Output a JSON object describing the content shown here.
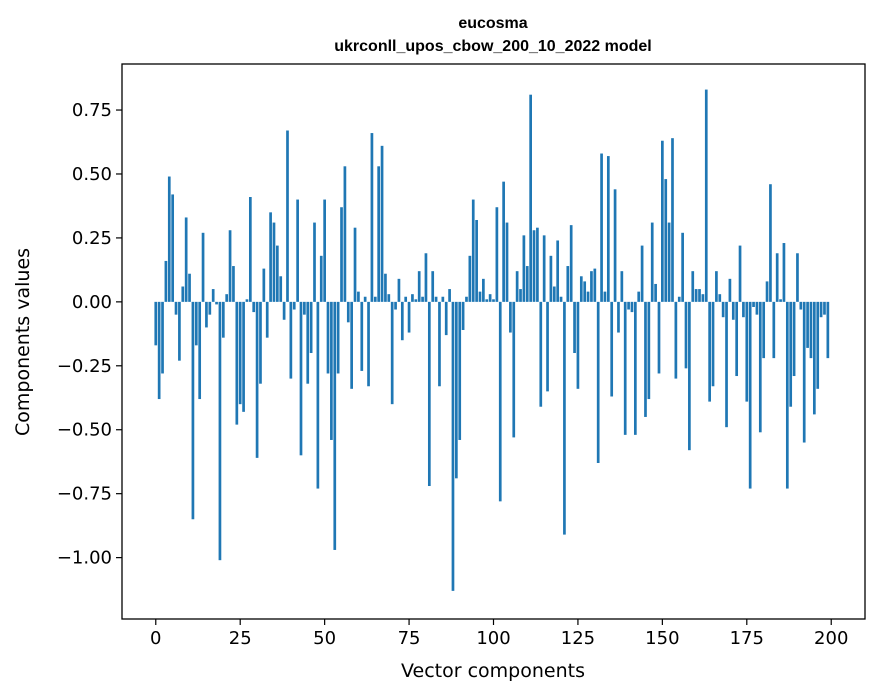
{
  "chart_data": {
    "type": "bar",
    "title": "eucosma",
    "subtitle": "ukrconll_upos_cbow_200_10_2022 model",
    "xlabel": "Vector components",
    "ylabel": "Components values",
    "xlim": [
      -10,
      210
    ],
    "ylim": [
      -1.24,
      0.93
    ],
    "xticks": [
      0,
      25,
      50,
      75,
      100,
      125,
      150,
      175,
      200
    ],
    "xtick_labels": [
      "0",
      "25",
      "50",
      "75",
      "100",
      "125",
      "150",
      "175",
      "200"
    ],
    "yticks": [
      0.75,
      0.5,
      0.25,
      0.0,
      -0.25,
      -0.5,
      -0.75,
      -1.0
    ],
    "ytick_labels": [
      "0.75",
      "0.50",
      "0.25",
      "0.00",
      "−0.25",
      "−0.50",
      "−0.75",
      "−1.00"
    ],
    "color": "#1f77b4",
    "grid": false,
    "values": [
      -0.17,
      -0.38,
      -0.28,
      0.16,
      0.49,
      0.42,
      -0.05,
      -0.23,
      0.06,
      0.33,
      0.11,
      -0.85,
      -0.17,
      -0.38,
      0.27,
      -0.1,
      -0.05,
      0.05,
      -0.01,
      -1.01,
      -0.14,
      0.03,
      0.28,
      0.14,
      -0.48,
      -0.4,
      -0.43,
      0.01,
      0.41,
      -0.04,
      -0.61,
      -0.32,
      0.13,
      -0.14,
      0.35,
      0.31,
      0.22,
      0.1,
      -0.07,
      0.67,
      -0.3,
      -0.03,
      0.4,
      -0.6,
      -0.05,
      -0.32,
      -0.2,
      0.31,
      -0.73,
      0.18,
      0.4,
      -0.28,
      -0.54,
      -0.97,
      -0.28,
      0.37,
      0.53,
      -0.08,
      -0.34,
      0.29,
      0.04,
      -0.27,
      0.02,
      -0.33,
      0.66,
      0.02,
      0.53,
      0.61,
      0.11,
      0.03,
      -0.4,
      -0.03,
      0.09,
      -0.15,
      0.02,
      -0.12,
      0.03,
      0.01,
      0.12,
      0.02,
      0.19,
      -0.72,
      0.12,
      0.02,
      -0.33,
      0.02,
      -0.13,
      0.05,
      -1.13,
      -0.69,
      -0.54,
      -0.11,
      0.02,
      0.18,
      0.4,
      0.32,
      0.04,
      0.09,
      0.01,
      0.03,
      0.01,
      0.37,
      -0.78,
      0.47,
      0.31,
      -0.12,
      -0.53,
      0.12,
      0.05,
      0.26,
      0.14,
      0.81,
      0.28,
      0.29,
      -0.41,
      0.26,
      -0.35,
      0.18,
      0.06,
      0.24,
      0.02,
      -0.91,
      0.14,
      0.3,
      -0.2,
      -0.34,
      0.1,
      0.08,
      0.04,
      0.12,
      0.13,
      -0.63,
      0.58,
      0.04,
      0.57,
      -0.37,
      0.44,
      -0.12,
      0.12,
      -0.52,
      -0.03,
      -0.04,
      -0.52,
      0.04,
      0.22,
      -0.45,
      -0.38,
      0.31,
      0.07,
      -0.28,
      0.63,
      0.48,
      0.31,
      0.64,
      -0.3,
      0.02,
      0.27,
      -0.26,
      -0.58,
      0.12,
      0.05,
      0.05,
      0.03,
      0.83,
      -0.39,
      -0.33,
      0.12,
      0.03,
      -0.06,
      -0.49,
      0.09,
      -0.07,
      -0.29,
      0.22,
      -0.06,
      -0.39,
      -0.73,
      -0.02,
      -0.05,
      -0.51,
      -0.22,
      0.08,
      0.46,
      -0.22,
      0.19,
      0.01,
      0.23,
      -0.73,
      -0.41,
      -0.29,
      0.19,
      -0.03,
      -0.55,
      -0.18,
      -0.22,
      -0.44,
      -0.34,
      -0.06,
      -0.05,
      -0.22
    ]
  }
}
